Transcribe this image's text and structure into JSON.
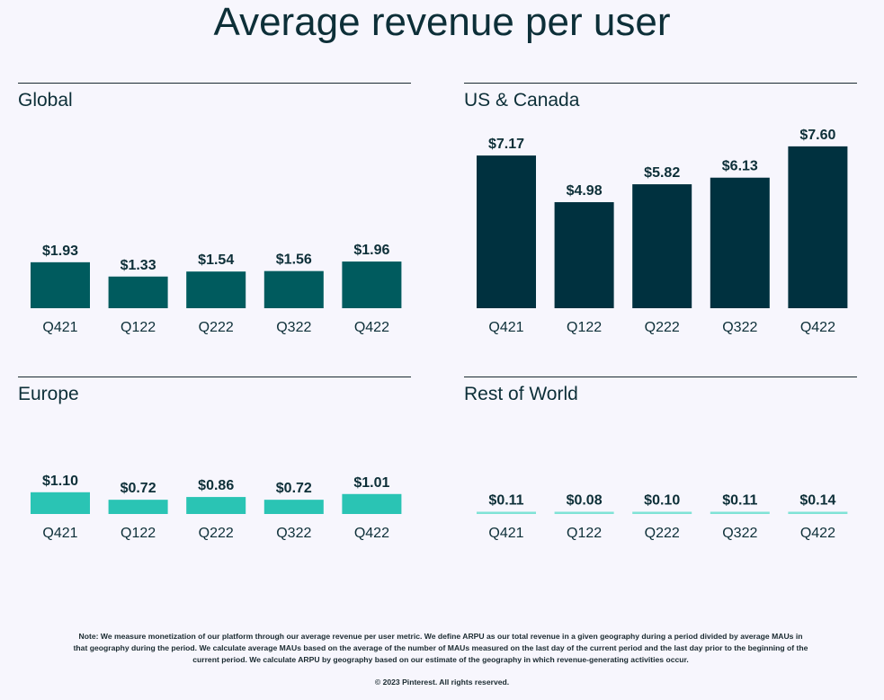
{
  "title": "Average revenue per user",
  "chart_data": [
    {
      "type": "bar",
      "title": "Global",
      "categories": [
        "Q421",
        "Q122",
        "Q222",
        "Q322",
        "Q422"
      ],
      "values": [
        1.93,
        1.33,
        1.54,
        1.56,
        1.96
      ],
      "labels": [
        "$1.93",
        "$1.33",
        "$1.54",
        "$1.56",
        "$1.96"
      ],
      "color": "#005b5e"
    },
    {
      "type": "bar",
      "title": "US & Canada",
      "categories": [
        "Q421",
        "Q122",
        "Q222",
        "Q322",
        "Q422"
      ],
      "values": [
        7.17,
        4.98,
        5.82,
        6.13,
        7.6
      ],
      "labels": [
        "$7.17",
        "$4.98",
        "$5.82",
        "$6.13",
        "$7.60"
      ],
      "color": "#00313f"
    },
    {
      "type": "bar",
      "title": "Europe",
      "categories": [
        "Q421",
        "Q122",
        "Q222",
        "Q322",
        "Q422"
      ],
      "values": [
        1.1,
        0.72,
        0.86,
        0.72,
        1.01
      ],
      "labels": [
        "$1.10",
        "$0.72",
        "$0.86",
        "$0.72",
        "$1.01"
      ],
      "color": "#2ac4b4"
    },
    {
      "type": "bar",
      "title": "Rest of World",
      "categories": [
        "Q421",
        "Q122",
        "Q222",
        "Q322",
        "Q422"
      ],
      "values": [
        0.11,
        0.08,
        0.1,
        0.11,
        0.14
      ],
      "labels": [
        "$0.11",
        "$0.08",
        "$0.10",
        "$0.11",
        "$0.14"
      ],
      "color": "#7fe3d6"
    }
  ],
  "note": "Note: We measure monetization of our platform through our average revenue per user metric. We define ARPU as our total revenue in a given geography during a period divided by average MAUs in that geography during the period. We calculate average MAUs based on the average of the number of MAUs measured on the last day of the current period and the last day prior to the beginning of the current period. We calculate ARPU by geography based on our estimate of the geography in which revenue-generating activities occur.",
  "copyright": "© 2023 Pinterest. All rights reserved."
}
